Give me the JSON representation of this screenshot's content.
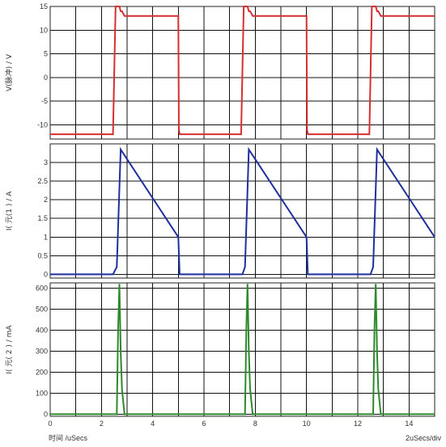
{
  "chart_data": [
    {
      "type": "line",
      "ylabel": "V(脉冲) / V",
      "xlim": [
        0,
        15
      ],
      "ylim": [
        -13,
        15
      ],
      "yticks": [
        15,
        10,
        5,
        0,
        -5,
        -10
      ],
      "grid": true,
      "colors": {
        "line": "#d62f2f"
      },
      "series": [
        {
          "x": [
            0,
            2.45,
            2.55,
            2.7,
            2.75,
            2.8,
            2.9,
            2.95,
            5.0,
            5.02,
            5.05,
            7.45,
            7.55,
            7.7,
            7.75,
            7.8,
            7.9,
            7.95,
            10.0,
            10.02,
            10.05,
            12.45,
            12.55,
            12.7,
            12.75,
            12.8,
            12.9,
            12.95,
            15
          ],
          "values": [
            -12,
            -12,
            15,
            15,
            14,
            14,
            13,
            13,
            13,
            -11,
            -12,
            -12,
            15,
            15,
            14,
            14,
            13,
            13,
            13,
            -11,
            -12,
            -12,
            15,
            15,
            14,
            14,
            13,
            13,
            13
          ]
        }
      ]
    },
    {
      "type": "line",
      "ylabel": "I(         元(1     ) / A",
      "xlim": [
        0,
        15
      ],
      "ylim": [
        -0.1,
        3.5
      ],
      "yticks": [
        3,
        2.5,
        2,
        1.5,
        1,
        0.5,
        0
      ],
      "grid": true,
      "colors": {
        "line": "#1f2f9c"
      },
      "series": [
        {
          "x": [
            0,
            2.45,
            2.6,
            2.75,
            5.0,
            5.05,
            7.5,
            7.6,
            7.75,
            10.0,
            10.05,
            12.5,
            12.6,
            12.75,
            15
          ],
          "values": [
            0,
            0,
            0.2,
            3.35,
            1.0,
            0,
            0,
            0.2,
            3.35,
            1.0,
            0,
            0,
            0.2,
            3.35,
            1.0
          ]
        }
      ]
    },
    {
      "type": "line",
      "ylabel": "I(         元( 2     ) / mA",
      "xlim": [
        0,
        15
      ],
      "ylim": [
        -10,
        625
      ],
      "yticks": [
        600,
        500,
        400,
        300,
        200,
        100,
        0
      ],
      "xticks": [
        0,
        2,
        4,
        6,
        8,
        10,
        12,
        14
      ],
      "xlabel": "时间     /uSecs",
      "grid": true,
      "colors": {
        "line": "#2c8a2c"
      },
      "series": [
        {
          "x": [
            0,
            2.5,
            2.6,
            2.65,
            2.7,
            2.75,
            2.8,
            2.9,
            3.0,
            7.5,
            7.6,
            7.65,
            7.7,
            7.75,
            7.8,
            7.9,
            8.0,
            12.5,
            12.6,
            12.65,
            12.7,
            12.75,
            12.8,
            12.9,
            13.0,
            15
          ],
          "values": [
            0,
            0,
            0,
            400,
            620,
            300,
            120,
            0,
            0,
            0,
            0,
            400,
            620,
            300,
            120,
            0,
            0,
            0,
            0,
            400,
            620,
            300,
            120,
            0,
            0,
            0
          ]
        }
      ]
    }
  ],
  "footer": {
    "scale": "2uSecs/div"
  }
}
